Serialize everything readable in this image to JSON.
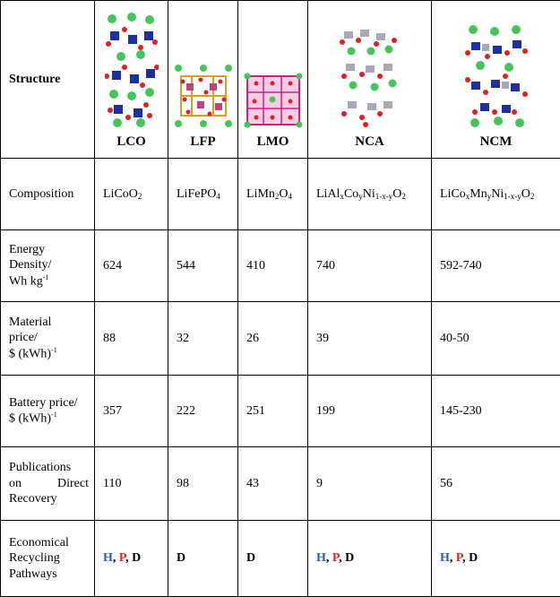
{
  "header": {
    "row_label": "Structure",
    "materials": [
      "LCO",
      "LFP",
      "LMO",
      "NCA",
      "NCM"
    ]
  },
  "rows": {
    "composition": {
      "label": "Composition",
      "values": [
        {
          "parts": [
            "LiCoO",
            "2",
            ""
          ]
        },
        {
          "parts": [
            "LiFePO",
            "4",
            ""
          ]
        },
        {
          "parts": [
            "LiMn",
            "2",
            "O",
            "4",
            ""
          ]
        },
        {
          "parts": [
            "LiAl",
            "x",
            "Co",
            "y",
            "Ni",
            "1-x-y",
            "O",
            "2",
            ""
          ]
        },
        {
          "parts": [
            "LiCo",
            "x",
            "Mn",
            "y",
            "Ni",
            "1-x-y",
            "O",
            "2",
            ""
          ]
        }
      ]
    },
    "energy_density": {
      "label_line1": "Energy",
      "label_line2": "Density/",
      "label_unit": "Wh kg",
      "label_exp": "-1",
      "values": [
        "624",
        "544",
        "410",
        "740",
        "592-740"
      ]
    },
    "material_price": {
      "label_line1": "Material",
      "label_line2": "price/",
      "label_unit": "$ (kWh)",
      "label_exp": "-1",
      "values": [
        "88",
        "32",
        "26",
        "39",
        "40-50"
      ]
    },
    "battery_price": {
      "label_line1": "Battery price/",
      "label_unit": "$ (kWh)",
      "label_exp": "-1",
      "values": [
        "357",
        "222",
        "251",
        "199",
        "145-230"
      ]
    },
    "publications": {
      "label_line1": "Publications",
      "label_line2": "on Direct",
      "label_line3": "Recovery",
      "values": [
        "110",
        "98",
        "43",
        "9",
        "56"
      ]
    },
    "pathways": {
      "label_line1": "Economical",
      "label_line2": "Recycling",
      "label_line3": "Pathways",
      "symbols": {
        "H": "H",
        "P": "P",
        "D": "D",
        "sep": ","
      },
      "colors": {
        "H": "#1f5fcf",
        "P": "#d8261f",
        "D": "#000000"
      }
    }
  }
}
